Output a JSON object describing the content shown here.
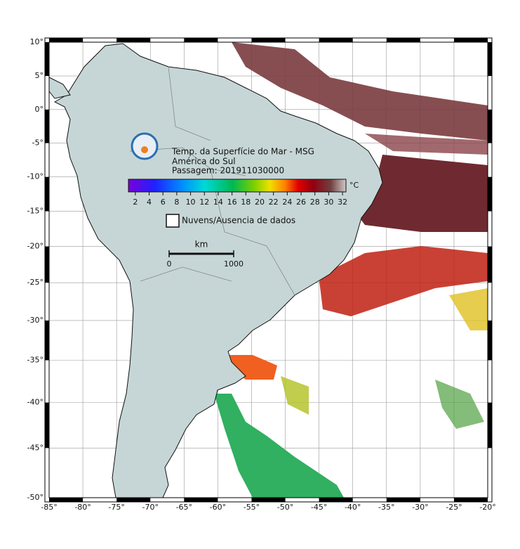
{
  "map": {
    "title_lines": [
      "Temp. da Superfície do Mar - MSG",
      "América do Sul",
      "Passagem: 201911030000"
    ],
    "colorbar": {
      "unit": "°C",
      "lim": [
        1,
        32.5
      ],
      "ticks": [
        2,
        4,
        6,
        8,
        10,
        12,
        14,
        16,
        18,
        20,
        22,
        24,
        26,
        28,
        30,
        32
      ]
    },
    "legend": "Nuvens/Ausencia de dados",
    "scale_bar": {
      "unit": "km",
      "ticks": [
        0,
        1000
      ]
    },
    "xlim": [
      -85,
      -20
    ],
    "ylim": [
      -50,
      10
    ],
    "xticks": [
      {
        "value": -85,
        "label": "-85°"
      },
      {
        "value": -80,
        "label": "-80°"
      },
      {
        "value": -75,
        "label": "-75°"
      },
      {
        "value": -70,
        "label": "-70°"
      },
      {
        "value": -65,
        "label": "-65°"
      },
      {
        "value": -60,
        "label": "-60°"
      },
      {
        "value": -55,
        "label": "-55°"
      },
      {
        "value": -50,
        "label": "-50°"
      },
      {
        "value": -45,
        "label": "-45°"
      },
      {
        "value": -40,
        "label": "-40°"
      },
      {
        "value": -35,
        "label": "-35°"
      },
      {
        "value": -30,
        "label": "-30°"
      },
      {
        "value": -25,
        "label": "-25°"
      },
      {
        "value": -20,
        "label": "-20°"
      }
    ],
    "yticks": [
      {
        "value": 10,
        "label": "10°"
      },
      {
        "value": 5,
        "label": "5°"
      },
      {
        "value": 0,
        "label": "0°"
      },
      {
        "value": -5,
        "label": "-5°"
      },
      {
        "value": -10,
        "label": "-10°"
      },
      {
        "value": -15,
        "label": "-15°"
      },
      {
        "value": -20,
        "label": "-20°"
      },
      {
        "value": -25,
        "label": "-25°"
      },
      {
        "value": -30,
        "label": "-30°"
      },
      {
        "value": -35,
        "label": "-35°"
      },
      {
        "value": -40,
        "label": "-40°"
      },
      {
        "value": -45,
        "label": "-45°"
      },
      {
        "value": -50,
        "label": "-50°"
      }
    ]
  }
}
